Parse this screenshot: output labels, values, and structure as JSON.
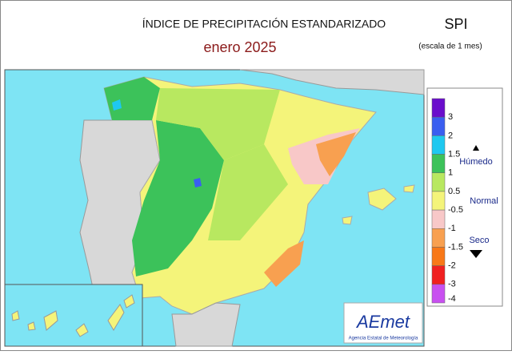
{
  "header": {
    "title": "ÍNDICE DE PRECIPITACIÓN ESTANDARIZADO",
    "subtitle": "enero  2025",
    "index": "SPI",
    "scale": "(escala de 1 mes)"
  },
  "legend": {
    "ticks": [
      3,
      2,
      1.5,
      1,
      0.5,
      -0.5,
      -1,
      -1.5,
      -2,
      -3,
      -4
    ],
    "colors": [
      "#6a0dcc",
      "#3a5ef0",
      "#1ec8f0",
      "#3cc25a",
      "#b8e860",
      "#f4f47a",
      "#f8c8c8",
      "#f8a050",
      "#f87818",
      "#f02020",
      "#c850f0"
    ],
    "wet": "Húmedo",
    "normal": "Normal",
    "dry": "Seco"
  },
  "logo": {
    "name": "AEmet",
    "agency": "Agencia Estatal de Meteorología"
  }
}
